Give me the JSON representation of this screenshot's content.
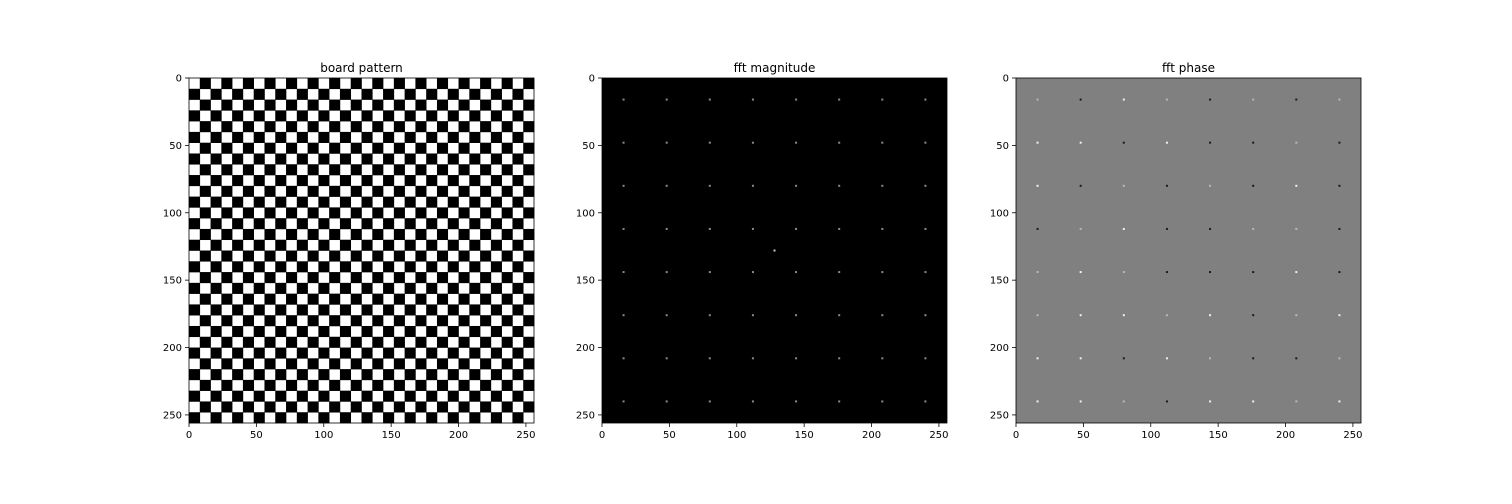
{
  "chart_data": [
    {
      "type": "heatmap",
      "title": "board pattern",
      "image_size": [
        256,
        256
      ],
      "pattern": "checkerboard",
      "square_size": 8,
      "colormap": "gray",
      "values_range": [
        0,
        1
      ],
      "xlim": [
        0,
        256
      ],
      "ylim": [
        256,
        0
      ],
      "x_ticks": [
        0,
        50,
        100,
        150,
        200,
        250
      ],
      "y_ticks": [
        0,
        50,
        100,
        150,
        200,
        250
      ],
      "x_tick_labels": [
        "0",
        "50",
        "100",
        "150",
        "200",
        "250"
      ],
      "y_tick_labels": [
        "0",
        "50",
        "100",
        "150",
        "200",
        "250"
      ]
    },
    {
      "type": "heatmap",
      "title": "fft magnitude",
      "image_size": [
        256,
        256
      ],
      "colormap": "gray",
      "background": "black",
      "peak_positions": [
        16,
        48,
        80,
        112,
        144,
        176,
        208,
        240
      ],
      "center_peak": [
        128,
        128
      ],
      "xlim": [
        0,
        256
      ],
      "ylim": [
        256,
        0
      ],
      "x_ticks": [
        0,
        50,
        100,
        150,
        200,
        250
      ],
      "y_ticks": [
        0,
        50,
        100,
        150,
        200,
        250
      ],
      "x_tick_labels": [
        "0",
        "50",
        "100",
        "150",
        "200",
        "250"
      ],
      "y_tick_labels": [
        "0",
        "50",
        "100",
        "150",
        "200",
        "250"
      ]
    },
    {
      "type": "heatmap",
      "title": "fft phase",
      "image_size": [
        256,
        256
      ],
      "colormap": "gray",
      "background": "gray",
      "peak_positions": [
        16,
        48,
        80,
        112,
        144,
        176,
        208,
        240
      ],
      "xlim": [
        0,
        256
      ],
      "ylim": [
        256,
        0
      ],
      "x_ticks": [
        0,
        50,
        100,
        150,
        200,
        250
      ],
      "y_ticks": [
        0,
        50,
        100,
        150,
        200,
        250
      ],
      "x_tick_labels": [
        "0",
        "50",
        "100",
        "150",
        "200",
        "250"
      ],
      "y_tick_labels": [
        "0",
        "50",
        "100",
        "150",
        "200",
        "250"
      ]
    }
  ]
}
